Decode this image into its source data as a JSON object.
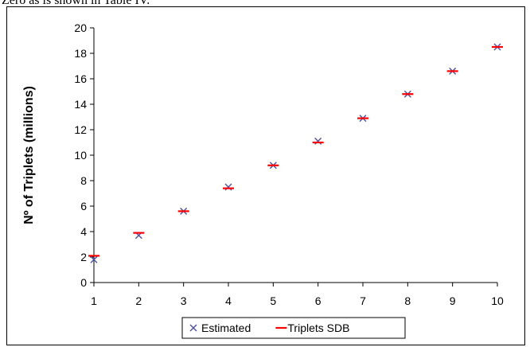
{
  "caption": {
    "fragment": "Zero as is shown in Table IV."
  },
  "colors": {
    "estimated": "#5050a0",
    "triplets_sdb": "#ff0000",
    "axis": "#000000"
  },
  "chart_data": {
    "type": "scatter",
    "title": "",
    "xlabel": "",
    "ylabel": "Nº of Triplets (millions)",
    "xlim": [
      1,
      10
    ],
    "ylim": [
      0,
      20
    ],
    "x_ticks": [
      1,
      2,
      3,
      4,
      5,
      6,
      7,
      8,
      9,
      10
    ],
    "y_ticks": [
      0,
      2,
      4,
      6,
      8,
      10,
      12,
      14,
      16,
      18,
      20
    ],
    "grid": false,
    "legend_position": "bottom",
    "series": [
      {
        "name": "Estimated",
        "marker": "x",
        "x": [
          1,
          2,
          3,
          4,
          5,
          6,
          7,
          8,
          9,
          10
        ],
        "y": [
          1.8,
          3.7,
          5.6,
          7.5,
          9.2,
          11.1,
          12.9,
          14.8,
          16.6,
          18.5
        ]
      },
      {
        "name": "Triplets SDB",
        "marker": "dash",
        "x": [
          1,
          2,
          3,
          4,
          5,
          6,
          7,
          8,
          9,
          10
        ],
        "y": [
          2.1,
          3.9,
          5.6,
          7.4,
          9.2,
          11.0,
          12.9,
          14.8,
          16.6,
          18.5
        ]
      }
    ]
  }
}
